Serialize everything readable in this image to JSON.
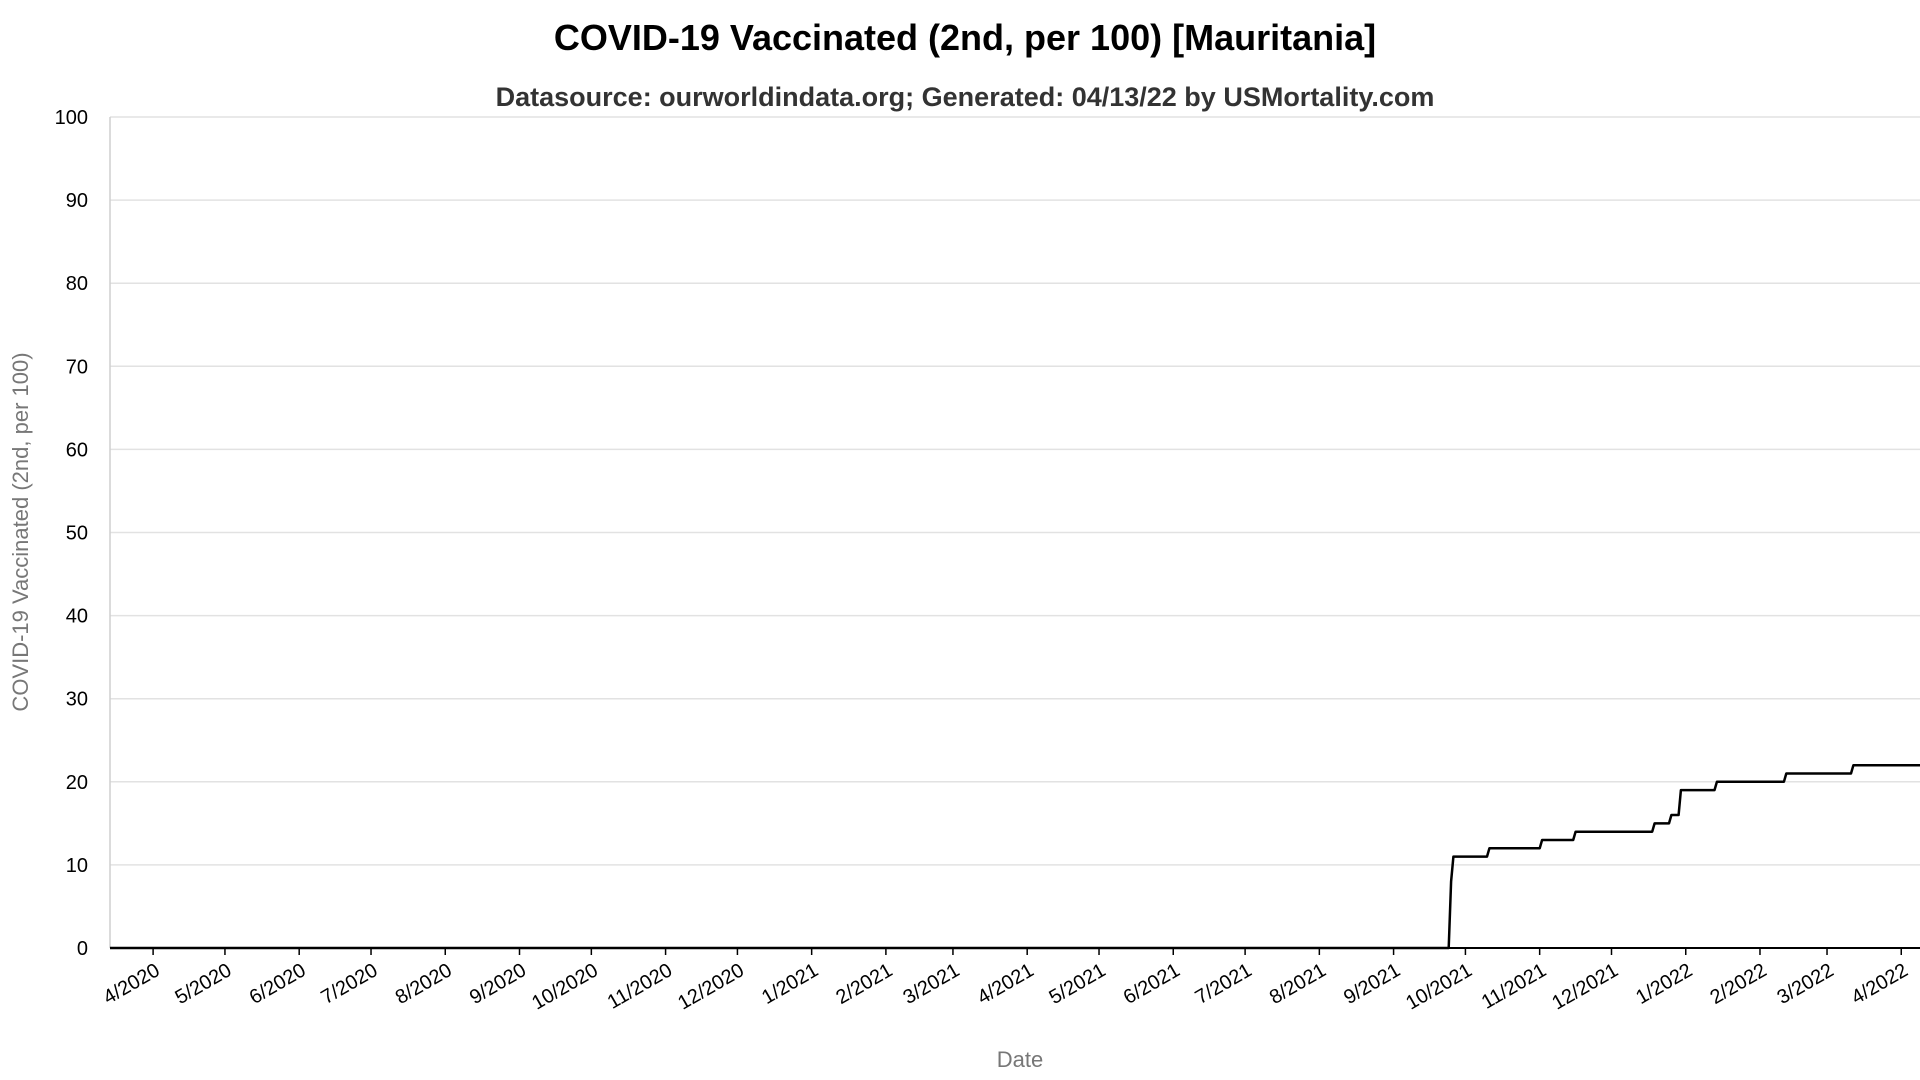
{
  "chart_data": {
    "type": "line",
    "title": "COVID-19 Vaccinated (2nd, per 100) [Mauritania]",
    "subtitle": "Datasource: ourworldindata.org; Generated: 04/13/22 by USMortality.com",
    "xlabel": "Date",
    "ylabel": "COVID-19 Vaccinated (2nd, per 100)",
    "ylim": [
      0,
      100
    ],
    "yticks": [
      0,
      10,
      20,
      30,
      40,
      50,
      60,
      70,
      80,
      90,
      100
    ],
    "grid": true,
    "line_color": "#000000",
    "xrange": [
      "2020-03-14",
      "2022-04-13"
    ],
    "xticks": [
      {
        "label": "4/2020",
        "date": "2020-04-01"
      },
      {
        "label": "5/2020",
        "date": "2020-05-01"
      },
      {
        "label": "6/2020",
        "date": "2020-06-01"
      },
      {
        "label": "7/2020",
        "date": "2020-07-01"
      },
      {
        "label": "8/2020",
        "date": "2020-08-01"
      },
      {
        "label": "9/2020",
        "date": "2020-09-01"
      },
      {
        "label": "10/2020",
        "date": "2020-10-01"
      },
      {
        "label": "11/2020",
        "date": "2020-11-01"
      },
      {
        "label": "12/2020",
        "date": "2020-12-01"
      },
      {
        "label": "1/2021",
        "date": "2021-01-01"
      },
      {
        "label": "2/2021",
        "date": "2021-02-01"
      },
      {
        "label": "3/2021",
        "date": "2021-03-01"
      },
      {
        "label": "4/2021",
        "date": "2021-04-01"
      },
      {
        "label": "5/2021",
        "date": "2021-05-01"
      },
      {
        "label": "6/2021",
        "date": "2021-06-01"
      },
      {
        "label": "7/2021",
        "date": "2021-07-01"
      },
      {
        "label": "8/2021",
        "date": "2021-08-01"
      },
      {
        "label": "9/2021",
        "date": "2021-09-01"
      },
      {
        "label": "10/2021",
        "date": "2021-10-01"
      },
      {
        "label": "11/2021",
        "date": "2021-11-01"
      },
      {
        "label": "12/2021",
        "date": "2021-12-01"
      },
      {
        "label": "1/2022",
        "date": "2022-01-01"
      },
      {
        "label": "2/2022",
        "date": "2022-02-01"
      },
      {
        "label": "3/2022",
        "date": "2022-03-01"
      },
      {
        "label": "4/2022",
        "date": "2022-04-01"
      }
    ],
    "series": [
      {
        "points": [
          {
            "date": "2020-03-14",
            "value": 0
          },
          {
            "date": "2021-09-24",
            "value": 0
          },
          {
            "date": "2021-09-25",
            "value": 8
          },
          {
            "date": "2021-09-26",
            "value": 11
          },
          {
            "date": "2021-10-10",
            "value": 11
          },
          {
            "date": "2021-10-11",
            "value": 12
          },
          {
            "date": "2021-11-01",
            "value": 12
          },
          {
            "date": "2021-11-02",
            "value": 13
          },
          {
            "date": "2021-11-15",
            "value": 13
          },
          {
            "date": "2021-11-16",
            "value": 14
          },
          {
            "date": "2021-12-18",
            "value": 14
          },
          {
            "date": "2021-12-19",
            "value": 15
          },
          {
            "date": "2021-12-25",
            "value": 15
          },
          {
            "date": "2021-12-26",
            "value": 16
          },
          {
            "date": "2021-12-29",
            "value": 16
          },
          {
            "date": "2021-12-30",
            "value": 19
          },
          {
            "date": "2022-01-13",
            "value": 19
          },
          {
            "date": "2022-01-14",
            "value": 20
          },
          {
            "date": "2022-02-11",
            "value": 20
          },
          {
            "date": "2022-02-12",
            "value": 21
          },
          {
            "date": "2022-03-11",
            "value": 21
          },
          {
            "date": "2022-03-12",
            "value": 22
          },
          {
            "date": "2022-04-13",
            "value": 22
          }
        ]
      }
    ]
  }
}
